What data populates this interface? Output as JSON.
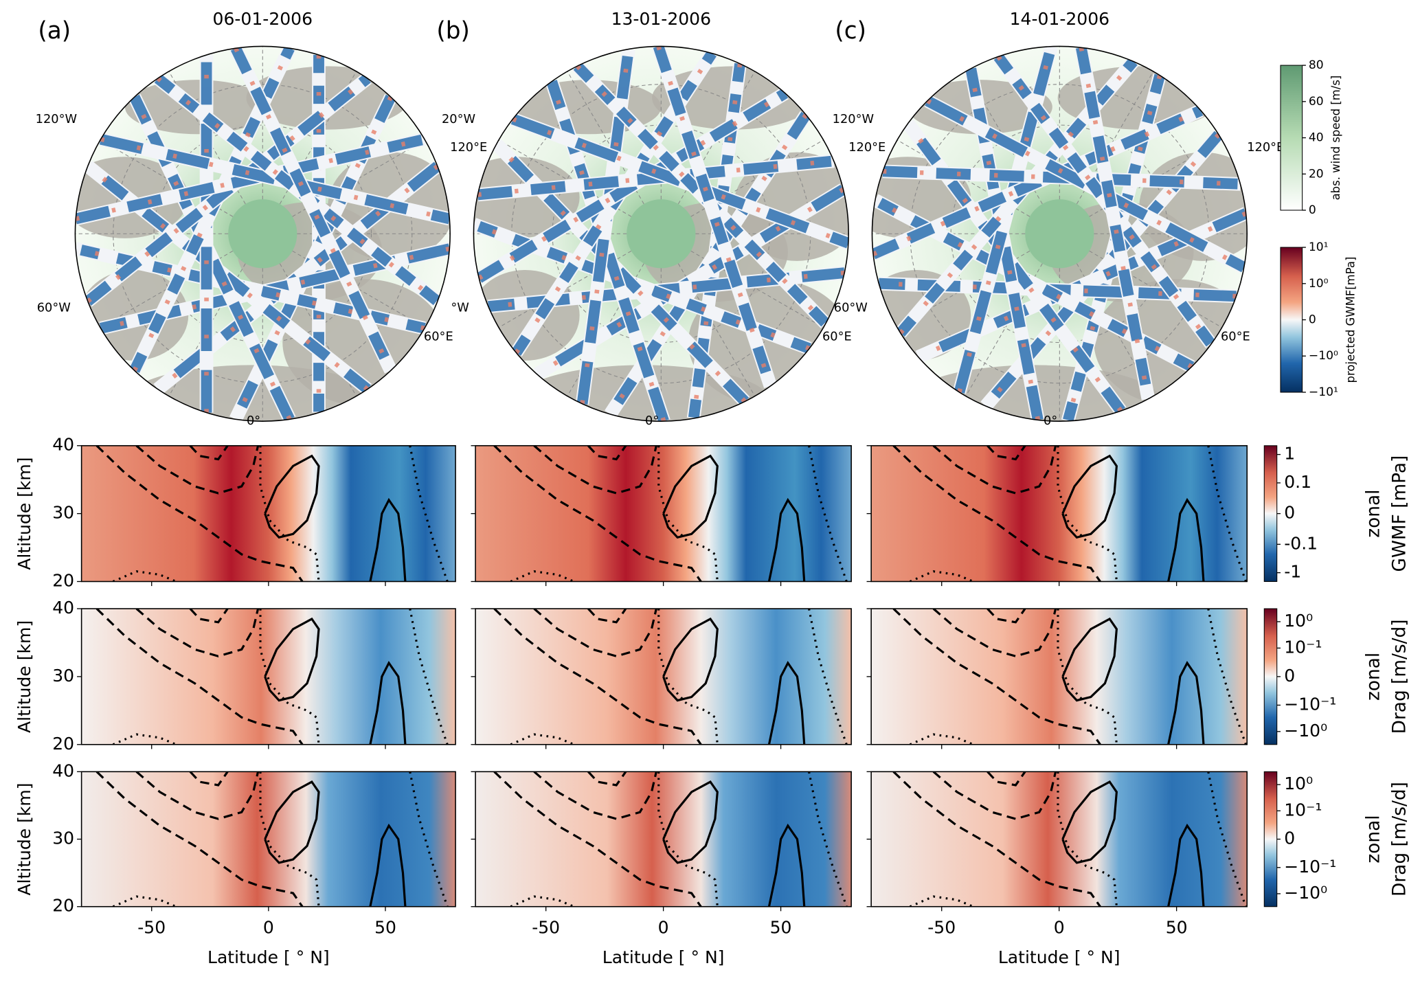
{
  "figure": {
    "maps": [
      {
        "label": "(a)",
        "title": "06-01-2006",
        "lon_labels": [
          "120°W",
          "120°E",
          "60°W",
          "60°E",
          "0°"
        ]
      },
      {
        "label": "(b)",
        "title": "13-01-2006",
        "lon_labels": [
          "20°W",
          "120°E",
          "°W",
          "60°E",
          "0°"
        ]
      },
      {
        "label": "(c)",
        "title": "14-01-2006",
        "lon_labels": [
          "120°W",
          "120°E",
          "60°W",
          "60°E",
          "0°"
        ]
      }
    ],
    "wind_colorbar": {
      "label": "abs. wind speed [m/s]",
      "lim": [
        0,
        80
      ],
      "ticks": [
        0,
        20,
        40,
        60,
        80
      ]
    },
    "gwmf_colorbar": {
      "label": "projected GWMF[mPa]",
      "lim": [
        -10,
        10
      ],
      "ticks": [
        {
          "value": -10,
          "label": "−10¹"
        },
        {
          "value": -1,
          "label": "−10⁰"
        },
        0,
        {
          "value": 1,
          "label": "10⁰"
        },
        {
          "value": 10,
          "label": "10¹"
        }
      ]
    },
    "rows": [
      {
        "ylabel": "Altitude [km]",
        "ylim": [
          20,
          40
        ],
        "yticks": [
          20,
          30,
          40
        ],
        "cbar_label": [
          "zonal",
          "GWMF [mPa]"
        ],
        "clim": [
          -2,
          2
        ],
        "cticks": [
          -1,
          -0.1,
          0,
          0.1,
          1
        ]
      },
      {
        "ylabel": "Altitude [km]",
        "ylim": [
          20,
          40
        ],
        "yticks": [
          20,
          30,
          40
        ],
        "cbar_label": [
          "zonal",
          "Drag [m/s/d]"
        ],
        "clim": [
          -3,
          3
        ],
        "cticks": [
          {
            "value": -1,
            "label": "−10⁰"
          },
          {
            "value": -0.1,
            "label": "−10⁻¹"
          },
          0,
          {
            "value": 0.1,
            "label": "10⁻¹"
          },
          {
            "value": 1,
            "label": "10⁰"
          }
        ]
      },
      {
        "ylabel": "Altitude [km]",
        "ylim": [
          20,
          40
        ],
        "yticks": [
          20,
          30,
          40
        ],
        "cbar_label": [
          "zonal",
          "Drag [m/s/d]"
        ],
        "clim": [
          -3,
          3
        ],
        "cticks": [
          {
            "value": -1,
            "label": "−10⁰"
          },
          {
            "value": -0.1,
            "label": "−10⁻¹"
          },
          0,
          {
            "value": 0.1,
            "label": "10⁻¹"
          },
          {
            "value": 1,
            "label": "10⁰"
          }
        ]
      }
    ],
    "xlabel": "Latitude [ ° N]",
    "xlim": [
      -80,
      80
    ],
    "xticks": [
      -50,
      0,
      50
    ]
  }
}
